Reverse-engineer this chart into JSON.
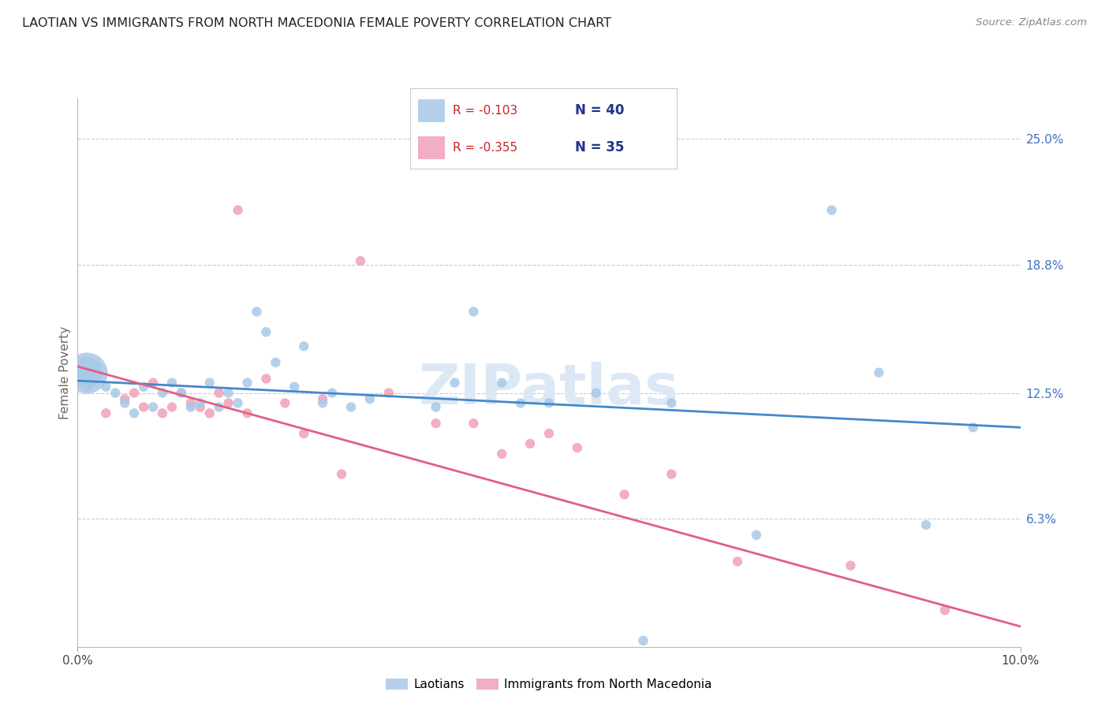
{
  "title": "LAOTIAN VS IMMIGRANTS FROM NORTH MACEDONIA FEMALE POVERTY CORRELATION CHART",
  "source": "Source: ZipAtlas.com",
  "ylabel": "Female Poverty",
  "ytick_labels": [
    "25.0%",
    "18.8%",
    "12.5%",
    "6.3%"
  ],
  "ytick_values": [
    0.25,
    0.188,
    0.125,
    0.063
  ],
  "xlim": [
    0.0,
    0.1
  ],
  "ylim": [
    0.0,
    0.27
  ],
  "legend_blue_r": "-0.103",
  "legend_blue_n": "40",
  "legend_pink_r": "-0.355",
  "legend_pink_n": "35",
  "legend_label_blue": "Laotians",
  "legend_label_pink": "Immigrants from North Macedonia",
  "blue_color": "#a8c8e8",
  "pink_color": "#f0a0b8",
  "trendline_blue_color": "#4488cc",
  "trendline_pink_color": "#e06080",
  "watermark_color": "#dce8f5",
  "blue_x": [
    0.001,
    0.003,
    0.004,
    0.005,
    0.006,
    0.007,
    0.008,
    0.009,
    0.01,
    0.011,
    0.012,
    0.013,
    0.014,
    0.015,
    0.016,
    0.017,
    0.018,
    0.019,
    0.02,
    0.021,
    0.023,
    0.024,
    0.026,
    0.027,
    0.029,
    0.031,
    0.038,
    0.04,
    0.042,
    0.045,
    0.047,
    0.05,
    0.055,
    0.06,
    0.063,
    0.072,
    0.08,
    0.085,
    0.09,
    0.095
  ],
  "blue_y": [
    0.135,
    0.128,
    0.125,
    0.12,
    0.115,
    0.128,
    0.118,
    0.125,
    0.13,
    0.125,
    0.118,
    0.12,
    0.13,
    0.118,
    0.125,
    0.12,
    0.13,
    0.165,
    0.155,
    0.14,
    0.128,
    0.148,
    0.12,
    0.125,
    0.118,
    0.122,
    0.118,
    0.13,
    0.165,
    0.13,
    0.12,
    0.12,
    0.125,
    0.003,
    0.12,
    0.055,
    0.215,
    0.135,
    0.06,
    0.108
  ],
  "blue_sizes": [
    800,
    80,
    80,
    80,
    80,
    80,
    80,
    80,
    80,
    80,
    80,
    80,
    80,
    80,
    80,
    80,
    80,
    80,
    80,
    80,
    80,
    80,
    80,
    80,
    80,
    80,
    80,
    80,
    80,
    80,
    80,
    80,
    80,
    80,
    80,
    80,
    80,
    80,
    80,
    80
  ],
  "pink_x": [
    0.001,
    0.002,
    0.003,
    0.005,
    0.006,
    0.007,
    0.008,
    0.009,
    0.01,
    0.011,
    0.012,
    0.013,
    0.014,
    0.015,
    0.016,
    0.017,
    0.018,
    0.02,
    0.022,
    0.024,
    0.026,
    0.028,
    0.03,
    0.033,
    0.038,
    0.042,
    0.045,
    0.048,
    0.05,
    0.053,
    0.058,
    0.063,
    0.07,
    0.082,
    0.092
  ],
  "pink_y": [
    0.128,
    0.138,
    0.115,
    0.122,
    0.125,
    0.118,
    0.13,
    0.115,
    0.118,
    0.125,
    0.12,
    0.118,
    0.115,
    0.125,
    0.12,
    0.215,
    0.115,
    0.132,
    0.12,
    0.105,
    0.122,
    0.085,
    0.19,
    0.125,
    0.11,
    0.11,
    0.095,
    0.1,
    0.105,
    0.098,
    0.075,
    0.085,
    0.042,
    0.04,
    0.018
  ],
  "pink_sizes": [
    80,
    80,
    80,
    80,
    80,
    80,
    80,
    80,
    80,
    80,
    80,
    80,
    80,
    80,
    80,
    80,
    80,
    80,
    80,
    80,
    80,
    80,
    80,
    80,
    80,
    80,
    80,
    80,
    80,
    80,
    80,
    80,
    80,
    80,
    80
  ],
  "trendline_blue_x0": 0.0,
  "trendline_blue_x1": 0.1,
  "trendline_blue_y0": 0.131,
  "trendline_blue_y1": 0.108,
  "trendline_pink_x0": 0.0,
  "trendline_pink_x1": 0.1,
  "trendline_pink_y0": 0.138,
  "trendline_pink_y1": 0.01
}
